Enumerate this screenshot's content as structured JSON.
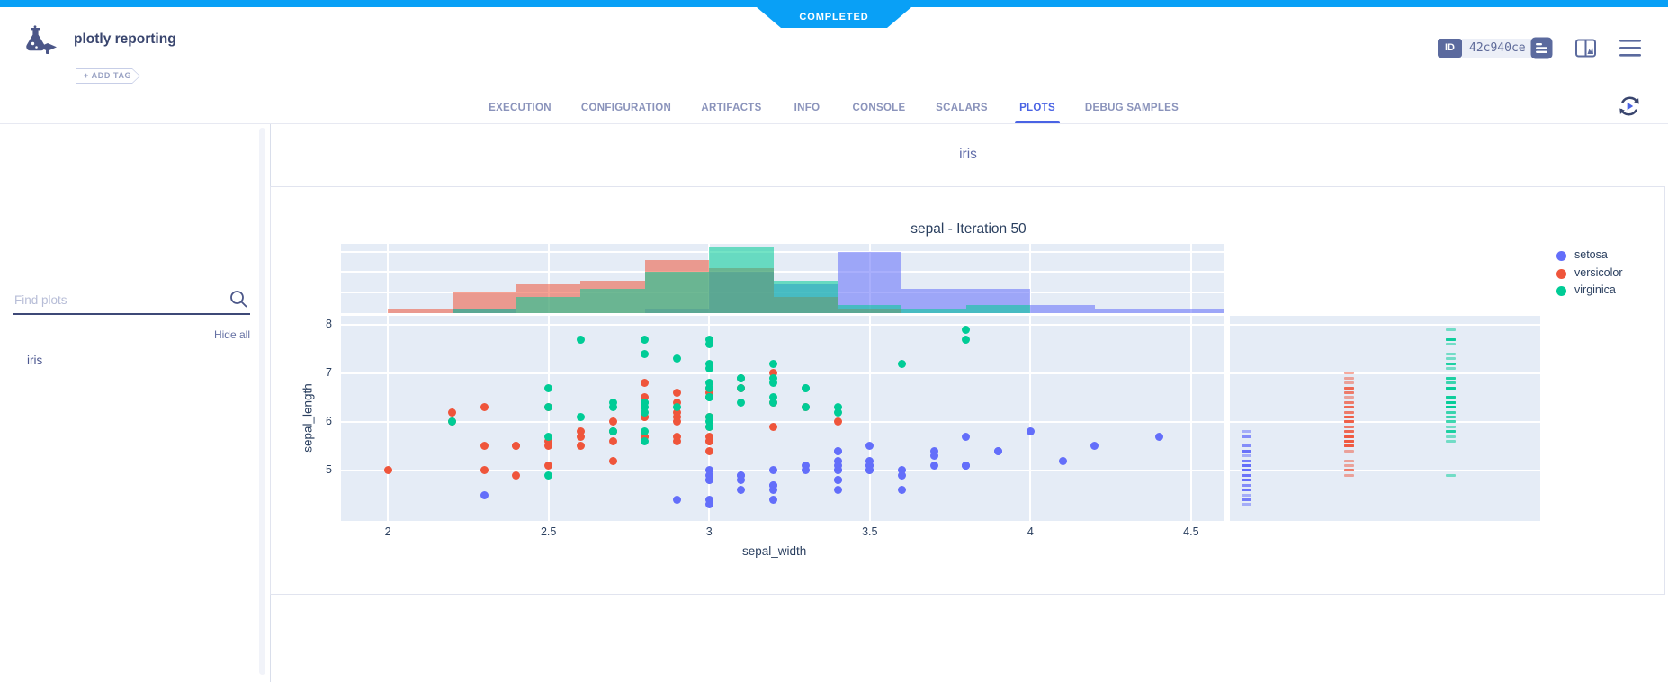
{
  "header": {
    "status": "COMPLETED",
    "app_title": "plotly reporting",
    "add_tag_label": "+ ADD TAG",
    "id_label": "ID",
    "id_value": "42c940ce"
  },
  "tabs": [
    {
      "label": "EXECUTION",
      "active": false
    },
    {
      "label": "CONFIGURATION",
      "active": false
    },
    {
      "label": "ARTIFACTS",
      "active": false
    },
    {
      "label": "INFO",
      "active": false
    },
    {
      "label": "CONSOLE",
      "active": false
    },
    {
      "label": "SCALARS",
      "active": false
    },
    {
      "label": "PLOTS",
      "active": true
    },
    {
      "label": "DEBUG SAMPLES",
      "active": false
    }
  ],
  "sidebar": {
    "search_placeholder": "Find plots",
    "hide_all_label": "Hide all",
    "items": [
      "iris"
    ]
  },
  "main": {
    "group_title": "iris"
  },
  "chart_data": {
    "type": "scatter",
    "title": "sepal - Iteration 50",
    "xlabel": "sepal_width",
    "ylabel": "sepal_length",
    "xlim": [
      1.854,
      4.604
    ],
    "ylim": [
      3.963,
      8.185
    ],
    "xticks": [
      2,
      2.5,
      3,
      3.5,
      4,
      4.5
    ],
    "xtick_labels": [
      "2",
      "2.5",
      "3",
      "3.5",
      "4",
      "4.5"
    ],
    "yticks": [
      5,
      6,
      7,
      8
    ],
    "ytick_labels": [
      "5",
      "6",
      "7",
      "8"
    ],
    "marginal_x": "histogram",
    "marginal_y": "rug",
    "hist_bins": {
      "start": 1.8,
      "size": 0.2
    },
    "hist_grid_counts": [
      5,
      10,
      15
    ],
    "plot_bg": "#e5ecf6",
    "legend_position": "right",
    "series": [
      {
        "name": "setosa",
        "color": "#636efa",
        "x": [
          3.5,
          3.0,
          3.2,
          3.1,
          3.6,
          3.9,
          3.4,
          3.4,
          2.9,
          3.1,
          3.7,
          3.4,
          3.0,
          3.0,
          4.0,
          4.4,
          3.9,
          3.5,
          3.8,
          3.8,
          3.4,
          3.7,
          3.6,
          3.3,
          3.4,
          3.0,
          3.4,
          3.5,
          3.4,
          3.2,
          3.1,
          3.4,
          4.1,
          4.2,
          3.1,
          3.2,
          3.5,
          3.6,
          3.0,
          3.4,
          3.5,
          2.3,
          3.2,
          3.5,
          3.8,
          3.0,
          3.8,
          3.2,
          3.7,
          3.3
        ],
        "y": [
          5.1,
          4.9,
          4.7,
          4.6,
          5.0,
          5.4,
          4.6,
          5.0,
          4.4,
          4.9,
          5.4,
          4.8,
          4.8,
          4.3,
          5.8,
          5.7,
          5.4,
          5.1,
          5.7,
          5.1,
          5.4,
          5.1,
          4.6,
          5.1,
          4.8,
          5.0,
          5.0,
          5.2,
          5.2,
          4.7,
          4.8,
          5.4,
          5.2,
          5.5,
          4.9,
          5.0,
          5.5,
          4.9,
          4.4,
          5.1,
          5.0,
          4.5,
          4.4,
          5.0,
          5.1,
          4.8,
          5.1,
          4.6,
          5.3,
          5.0
        ]
      },
      {
        "name": "versicolor",
        "color": "#ef553b",
        "x": [
          3.2,
          3.2,
          3.1,
          2.3,
          2.8,
          2.8,
          3.3,
          2.4,
          2.9,
          2.7,
          2.0,
          3.0,
          2.2,
          2.9,
          2.9,
          3.1,
          3.0,
          2.7,
          2.2,
          2.5,
          3.2,
          2.8,
          2.5,
          2.8,
          2.9,
          3.0,
          2.8,
          3.0,
          2.9,
          2.6,
          2.4,
          2.4,
          2.7,
          2.7,
          3.0,
          3.4,
          3.1,
          2.3,
          3.0,
          2.5,
          2.6,
          3.0,
          2.6,
          2.3,
          2.7,
          3.0,
          2.9,
          2.9,
          2.5,
          2.8
        ],
        "y": [
          7.0,
          6.4,
          6.9,
          5.5,
          6.5,
          5.7,
          6.3,
          4.9,
          6.6,
          5.2,
          5.0,
          5.9,
          6.0,
          6.1,
          5.6,
          6.7,
          5.6,
          5.8,
          6.2,
          5.6,
          5.9,
          6.1,
          6.3,
          6.1,
          6.4,
          6.6,
          6.8,
          6.7,
          6.0,
          5.7,
          5.5,
          5.5,
          5.8,
          6.0,
          5.4,
          6.0,
          6.7,
          6.3,
          5.6,
          5.5,
          5.5,
          6.1,
          5.8,
          5.0,
          5.6,
          5.7,
          5.7,
          6.2,
          5.1,
          5.7
        ]
      },
      {
        "name": "virginica",
        "color": "#00cc96",
        "x": [
          3.3,
          2.7,
          3.0,
          2.9,
          3.0,
          3.0,
          2.5,
          2.9,
          2.5,
          3.6,
          3.2,
          2.7,
          3.0,
          2.5,
          2.8,
          3.2,
          3.0,
          3.8,
          2.6,
          2.2,
          3.2,
          2.8,
          2.8,
          2.7,
          3.3,
          3.2,
          2.8,
          3.0,
          2.8,
          3.0,
          2.8,
          3.8,
          2.8,
          2.8,
          2.6,
          3.0,
          3.4,
          3.1,
          3.0,
          3.1,
          3.1,
          3.1,
          2.7,
          3.2,
          3.3,
          3.0,
          2.5,
          3.0,
          3.4,
          3.0
        ],
        "y": [
          6.3,
          5.8,
          7.1,
          6.3,
          6.5,
          7.6,
          4.9,
          7.3,
          6.7,
          7.2,
          6.5,
          6.4,
          6.8,
          5.7,
          5.8,
          6.4,
          6.5,
          7.7,
          7.7,
          6.0,
          6.9,
          5.6,
          7.7,
          6.3,
          6.7,
          7.2,
          6.2,
          6.1,
          6.4,
          7.2,
          7.4,
          7.9,
          6.4,
          6.3,
          6.1,
          7.7,
          6.3,
          6.4,
          6.0,
          6.9,
          6.7,
          6.9,
          5.8,
          6.8,
          6.7,
          6.7,
          6.3,
          6.5,
          6.2,
          5.9
        ]
      }
    ]
  }
}
